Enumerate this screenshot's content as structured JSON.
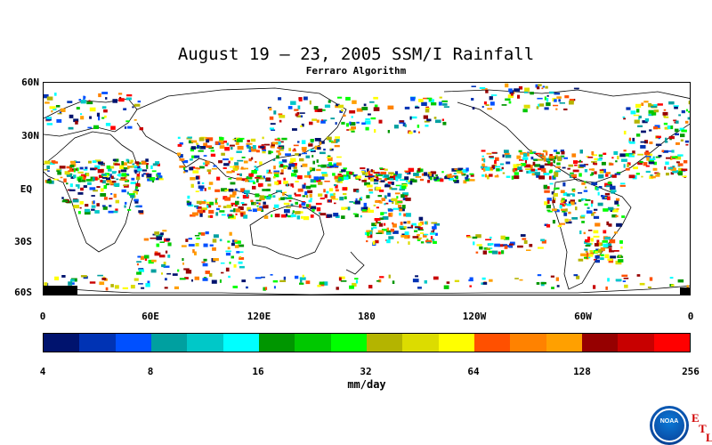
{
  "title": "August 19 – 23, 2005 SSM/I Rainfall",
  "subtitle": "Ferraro Algorithm",
  "lat_labels": [
    "60N",
    "30N",
    "EQ",
    "30S",
    "60S"
  ],
  "lon_labels": [
    "0",
    "60E",
    "120E",
    "180",
    "120W",
    "60W",
    "0"
  ],
  "colorbar": {
    "colors": [
      "#00136e",
      "#0033b4",
      "#0050ff",
      "#00a0a0",
      "#00c8c8",
      "#00ffff",
      "#009600",
      "#00c800",
      "#00ff00",
      "#b4b400",
      "#dcdc00",
      "#ffff00",
      "#ff5000",
      "#ff8200",
      "#ffa000",
      "#960000",
      "#c80000",
      "#ff0000"
    ],
    "tick_labels": [
      "4",
      "8",
      "16",
      "32",
      "64",
      "128",
      "256"
    ],
    "units": "mm/day"
  },
  "logo": {
    "text": "NOAA",
    "etl_letters": [
      "E",
      "T",
      "L"
    ]
  }
}
